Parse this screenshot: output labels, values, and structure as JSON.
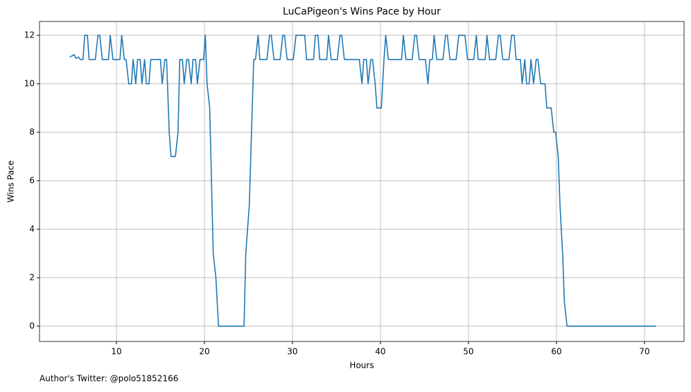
{
  "chart_data": {
    "type": "line",
    "title": "LuCaPigeon's Wins Pace by Hour",
    "x_label": "Hours",
    "y_label": "Wins Pace",
    "footnote": "Author's Twitter: @polo51852166",
    "x": [
      4.7,
      5.2,
      5.4,
      5.7,
      5.9,
      6.2,
      6.4,
      6.7,
      6.9,
      7.6,
      7.9,
      8.1,
      8.4,
      9.1,
      9.3,
      9.6,
      10.4,
      10.6,
      10.9,
      11.1,
      11.4,
      11.7,
      11.9,
      12.2,
      12.4,
      12.7,
      12.9,
      13.2,
      13.4,
      13.7,
      13.9,
      15.0,
      15.2,
      15.5,
      15.7,
      16.0,
      16.2,
      16.7,
      17.0,
      17.2,
      17.5,
      17.7,
      18.0,
      18.2,
      18.5,
      18.7,
      19.0,
      19.2,
      19.5,
      19.9,
      20.1,
      20.3,
      20.6,
      21.0,
      21.3,
      21.6,
      24.5,
      24.7,
      25.1,
      25.6,
      25.8,
      26.1,
      26.3,
      27.1,
      27.4,
      27.6,
      27.9,
      28.6,
      28.9,
      29.1,
      29.4,
      30.1,
      30.4,
      31.4,
      31.6,
      32.4,
      32.6,
      32.9,
      33.1,
      33.9,
      34.1,
      34.4,
      35.1,
      35.4,
      35.6,
      35.9,
      37.6,
      37.9,
      38.1,
      38.4,
      38.6,
      38.9,
      39.1,
      39.4,
      39.6,
      40.1,
      40.4,
      40.6,
      40.9,
      42.4,
      42.6,
      42.9,
      43.6,
      43.9,
      44.1,
      44.4,
      45.1,
      45.4,
      45.6,
      45.9,
      46.1,
      46.4,
      47.1,
      47.4,
      47.6,
      47.9,
      48.6,
      48.9,
      49.6,
      49.9,
      50.6,
      50.9,
      51.1,
      51.9,
      52.1,
      52.4,
      53.1,
      53.4,
      53.6,
      53.9,
      54.6,
      54.9,
      55.2,
      55.4,
      55.9,
      56.1,
      56.4,
      56.6,
      56.9,
      57.1,
      57.4,
      57.7,
      57.9,
      58.2,
      58.7,
      58.9,
      59.4,
      59.7,
      59.9,
      60.2,
      60.4,
      60.7,
      60.9,
      61.2,
      71.3
    ],
    "series": [
      {
        "name": "Wins Pace",
        "color": "#1f77b4",
        "values": [
          11.1,
          11.2,
          11.05,
          11.1,
          11.0,
          11.0,
          12,
          12,
          11,
          11,
          12,
          12,
          11,
          11,
          12,
          11,
          11,
          12,
          11,
          11,
          10,
          10,
          11,
          10,
          11,
          11,
          10,
          11,
          10,
          10,
          11,
          11,
          10,
          11,
          11,
          8,
          7,
          7,
          8,
          11,
          11,
          10,
          11,
          11,
          10,
          11,
          11,
          10,
          11,
          11,
          12,
          10,
          9,
          3,
          2,
          0,
          0,
          3,
          5,
          11,
          11,
          12,
          11,
          11,
          12,
          12,
          11,
          11,
          12,
          12,
          11,
          11,
          12,
          12,
          11,
          11,
          12,
          12,
          11,
          11,
          12,
          11,
          11,
          12,
          12,
          11,
          11,
          10,
          11,
          11,
          10,
          11,
          11,
          10,
          9,
          9,
          11,
          12,
          11,
          11,
          12,
          11,
          11,
          12,
          12,
          11,
          11,
          10,
          11,
          11,
          12,
          11,
          11,
          12,
          12,
          11,
          11,
          12,
          12,
          11,
          11,
          12,
          11,
          11,
          12,
          11,
          11,
          12,
          12,
          11,
          11,
          12,
          12,
          11,
          11,
          10,
          11,
          10,
          10,
          11,
          10,
          11,
          11,
          10,
          10,
          9,
          9,
          8,
          8,
          7,
          5,
          3,
          1,
          0,
          0
        ]
      }
    ],
    "xlim": [
      1.26,
      74.5
    ],
    "ylim": [
      -0.63,
      12.57
    ],
    "xticks": [
      10,
      20,
      30,
      40,
      50,
      60,
      70
    ],
    "yticks": [
      0,
      2,
      4,
      6,
      8,
      10,
      12
    ],
    "grid": true
  }
}
